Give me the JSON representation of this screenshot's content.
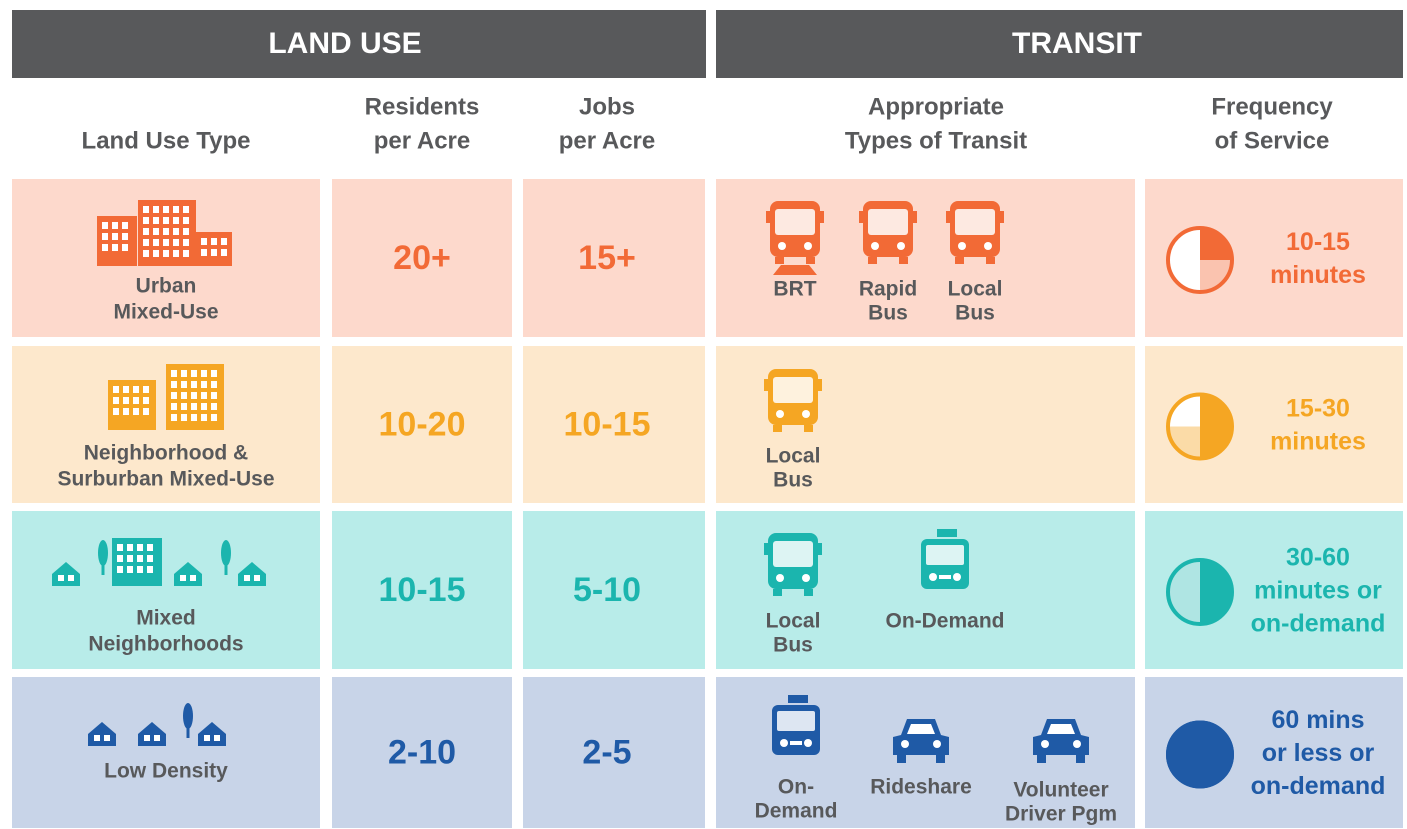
{
  "header": {
    "land_use": "LAND USE",
    "transit": "TRANSIT"
  },
  "columns": [
    [
      "Land Use Type"
    ],
    [
      "Residents",
      "per Acre"
    ],
    [
      "Jobs",
      "per Acre"
    ],
    [
      "Appropriate",
      "Types of Transit"
    ],
    [
      "Frequency",
      "of Service"
    ]
  ],
  "rows": [
    {
      "color": "#f26a36",
      "bg": "#fdd9cc",
      "land_use_type": [
        "Urban",
        "Mixed-Use"
      ],
      "residents": "20+",
      "jobs": "15+",
      "transit": [
        [
          "BRT"
        ],
        [
          "Rapid",
          "Bus"
        ],
        [
          "Local",
          "Bus"
        ]
      ],
      "frequency": [
        "10-15",
        "minutes"
      ]
    },
    {
      "color": "#f5a623",
      "bg": "#fde8cc",
      "land_use_type": [
        "Neighborhood &",
        "Surburban Mixed-Use"
      ],
      "residents": "10-20",
      "jobs": "10-15",
      "transit": [
        [
          "Local",
          "Bus"
        ]
      ],
      "frequency": [
        "15-30",
        "minutes"
      ]
    },
    {
      "color": "#1bb5ae",
      "bg": "#b8ece9",
      "land_use_type": [
        "Mixed",
        "Neighborhoods"
      ],
      "residents": "10-15",
      "jobs": "5-10",
      "transit": [
        [
          "Local",
          "Bus"
        ],
        [
          "On-Demand"
        ]
      ],
      "frequency": [
        "30-60",
        "minutes or",
        "on-demand"
      ]
    },
    {
      "color": "#1f5aa6",
      "bg": "#c8d4e8",
      "land_use_type": [
        "Low Density"
      ],
      "residents": "2-10",
      "jobs": "2-5",
      "transit": [
        [
          "On-",
          "Demand"
        ],
        [
          "Rideshare"
        ],
        [
          "Volunteer",
          "Driver Pgm"
        ]
      ],
      "frequency": [
        "60 mins",
        "or less or",
        "on-demand"
      ]
    }
  ]
}
